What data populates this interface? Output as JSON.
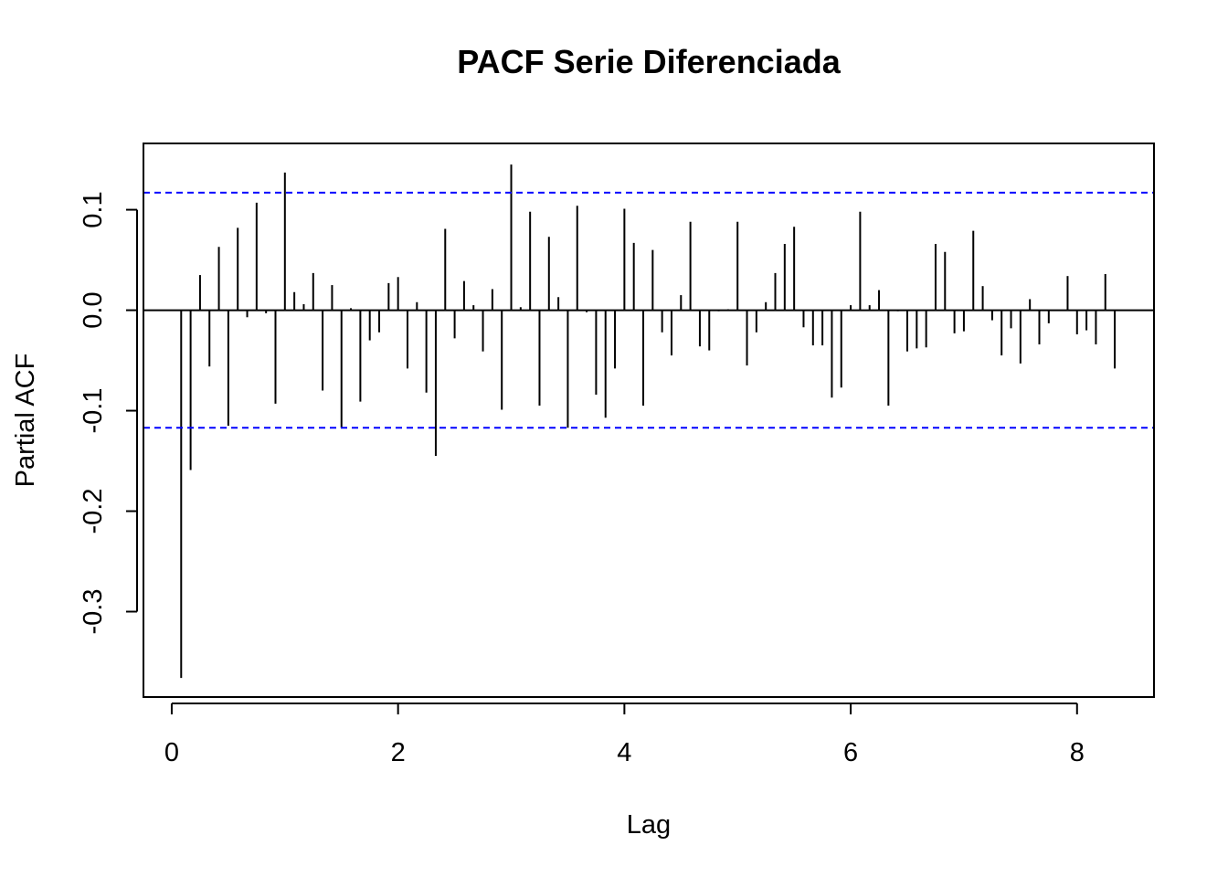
{
  "chart_data": {
    "type": "bar",
    "title": "PACF Serie Diferenciada",
    "xlabel": "Lag",
    "ylabel": "Partial ACF",
    "xlim": [
      -0.25,
      8.68
    ],
    "ylim": [
      -0.385,
      0.166
    ],
    "x_ticks": [
      0,
      2,
      4,
      6,
      8
    ],
    "x_tick_labels": [
      "0",
      "2",
      "4",
      "6",
      "8"
    ],
    "y_ticks": [
      -0.3,
      -0.2,
      -0.1,
      0.0,
      0.1
    ],
    "y_tick_labels": [
      "-0.3",
      "-0.2",
      "-0.1",
      "0.0",
      "0.1"
    ],
    "confidence_limit": 0.117,
    "colors": {
      "bars": "#000000",
      "confidence": "#0000ff",
      "zero_line": "#000000"
    },
    "grid": false,
    "x": [
      0.0833,
      0.1667,
      0.25,
      0.3333,
      0.4167,
      0.5,
      0.5833,
      0.6667,
      0.75,
      0.8333,
      0.9167,
      1.0,
      1.0833,
      1.1667,
      1.25,
      1.3333,
      1.4167,
      1.5,
      1.5833,
      1.6667,
      1.75,
      1.8333,
      1.9167,
      2.0,
      2.0833,
      2.1667,
      2.25,
      2.3333,
      2.4167,
      2.5,
      2.5833,
      2.6667,
      2.75,
      2.8333,
      2.9167,
      3.0,
      3.0833,
      3.1667,
      3.25,
      3.3333,
      3.4167,
      3.5,
      3.5833,
      3.6667,
      3.75,
      3.8333,
      3.9167,
      4.0,
      4.0833,
      4.1667,
      4.25,
      4.3333,
      4.4167,
      4.5,
      4.5833,
      4.6667,
      4.75,
      4.8333,
      4.9167,
      5.0,
      5.0833,
      5.1667,
      5.25,
      5.3333,
      5.4167,
      5.5,
      5.5833,
      5.6667,
      5.75,
      5.8333,
      5.9167,
      6.0,
      6.0833,
      6.1667,
      6.25,
      6.3333,
      6.4167,
      6.5,
      6.5833,
      6.6667,
      6.75,
      6.8333,
      6.9167,
      7.0,
      7.0833,
      7.1667,
      7.25,
      7.3333,
      7.4167,
      7.5,
      7.5833,
      7.6667,
      7.75,
      7.8333,
      7.9167,
      8.0,
      8.0833,
      8.1667,
      8.25,
      8.3333
    ],
    "values": [
      -0.366,
      -0.159,
      0.035,
      -0.056,
      0.063,
      -0.115,
      0.082,
      -0.007,
      0.107,
      -0.003,
      -0.093,
      0.137,
      0.018,
      0.006,
      0.037,
      -0.08,
      0.025,
      -0.117,
      0.002,
      -0.091,
      -0.03,
      -0.022,
      0.027,
      0.033,
      -0.058,
      0.008,
      -0.082,
      -0.145,
      0.081,
      -0.028,
      0.029,
      0.005,
      -0.041,
      0.021,
      -0.099,
      0.145,
      0.003,
      0.098,
      -0.095,
      0.073,
      0.013,
      -0.117,
      0.104,
      -0.002,
      -0.084,
      -0.107,
      -0.058,
      0.101,
      0.067,
      -0.095,
      0.06,
      -0.022,
      -0.045,
      0.015,
      0.088,
      -0.036,
      -0.04,
      -0.001,
      0.001,
      0.088,
      -0.055,
      -0.022,
      0.008,
      0.037,
      0.066,
      0.083,
      -0.017,
      -0.035,
      -0.035,
      -0.087,
      -0.077,
      0.005,
      0.098,
      0.005,
      0.02,
      -0.095,
      -0.001,
      -0.041,
      -0.038,
      -0.037,
      0.066,
      0.058,
      -0.023,
      -0.021,
      0.079,
      0.024,
      -0.01,
      -0.045,
      -0.018,
      -0.053,
      0.011,
      -0.034,
      -0.013,
      0.0,
      0.034,
      -0.024,
      -0.02,
      -0.034,
      0.036,
      -0.058
    ]
  }
}
